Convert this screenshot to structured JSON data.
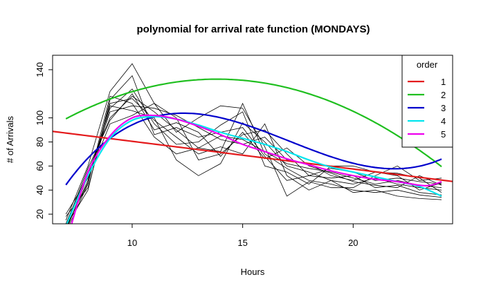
{
  "chart_data": {
    "type": "line",
    "title": "polynomial for arrival rate function (MONDAYS)",
    "xlabel": "Hours",
    "ylabel": "# of Arrivals",
    "xlim": [
      6.4,
      24.5
    ],
    "ylim": [
      12,
      152
    ],
    "xticks": [
      10,
      15,
      20
    ],
    "yticks": [
      20,
      40,
      60,
      80,
      100,
      140
    ],
    "legend": {
      "title": "order",
      "position": "top-right"
    },
    "raw_series": [
      [
        [
          7,
          5
        ],
        [
          8,
          45
        ],
        [
          9,
          118
        ],
        [
          10,
          112
        ],
        [
          11,
          84
        ],
        [
          12,
          70
        ],
        [
          13,
          75
        ],
        [
          14,
          72
        ],
        [
          15,
          112
        ],
        [
          16,
          70
        ],
        [
          17,
          58
        ],
        [
          18,
          48
        ],
        [
          19,
          45
        ],
        [
          20,
          40
        ],
        [
          21,
          38
        ],
        [
          22,
          40
        ],
        [
          23,
          36
        ],
        [
          24,
          34
        ]
      ],
      [
        [
          7,
          8
        ],
        [
          8,
          48
        ],
        [
          9,
          110
        ],
        [
          10,
          106
        ],
        [
          11,
          100
        ],
        [
          12,
          65
        ],
        [
          13,
          52
        ],
        [
          14,
          62
        ],
        [
          15,
          96
        ],
        [
          16,
          80
        ],
        [
          17,
          60
        ],
        [
          18,
          55
        ],
        [
          19,
          48
        ],
        [
          20,
          45
        ],
        [
          21,
          50
        ],
        [
          22,
          45
        ],
        [
          23,
          42
        ],
        [
          24,
          40
        ]
      ],
      [
        [
          7,
          10
        ],
        [
          8,
          40
        ],
        [
          9,
          115
        ],
        [
          10,
          135
        ],
        [
          11,
          86
        ],
        [
          12,
          92
        ],
        [
          13,
          84
        ],
        [
          14,
          88
        ],
        [
          15,
          92
        ],
        [
          16,
          68
        ],
        [
          17,
          48
        ],
        [
          18,
          52
        ],
        [
          19,
          50
        ],
        [
          20,
          52
        ],
        [
          21,
          42
        ],
        [
          22,
          44
        ],
        [
          23,
          38
        ],
        [
          24,
          36
        ]
      ],
      [
        [
          7,
          12
        ],
        [
          8,
          55
        ],
        [
          9,
          100
        ],
        [
          10,
          118
        ],
        [
          11,
          105
        ],
        [
          12,
          90
        ],
        [
          13,
          75
        ],
        [
          14,
          85
        ],
        [
          15,
          82
        ],
        [
          16,
          72
        ],
        [
          17,
          62
        ],
        [
          18,
          58
        ],
        [
          19,
          55
        ],
        [
          20,
          50
        ],
        [
          21,
          45
        ],
        [
          22,
          48
        ],
        [
          23,
          44
        ],
        [
          24,
          42
        ]
      ],
      [
        [
          7,
          15
        ],
        [
          8,
          60
        ],
        [
          9,
          122
        ],
        [
          10,
          145
        ],
        [
          11,
          112
        ],
        [
          12,
          100
        ],
        [
          13,
          65
        ],
        [
          14,
          70
        ],
        [
          15,
          86
        ],
        [
          16,
          90
        ],
        [
          17,
          70
        ],
        [
          18,
          52
        ],
        [
          19,
          58
        ],
        [
          20,
          55
        ],
        [
          21,
          48
        ],
        [
          22,
          50
        ],
        [
          23,
          47
        ],
        [
          24,
          45
        ]
      ],
      [
        [
          7,
          18
        ],
        [
          8,
          42
        ],
        [
          9,
          108
        ],
        [
          10,
          124
        ],
        [
          11,
          95
        ],
        [
          12,
          78
        ],
        [
          13,
          80
        ],
        [
          14,
          94
        ],
        [
          15,
          105
        ],
        [
          16,
          60
        ],
        [
          17,
          55
        ],
        [
          18,
          45
        ],
        [
          19,
          60
        ],
        [
          20,
          60
        ],
        [
          21,
          55
        ],
        [
          22,
          54
        ],
        [
          23,
          50
        ],
        [
          24,
          38
        ]
      ],
      [
        [
          7,
          20
        ],
        [
          8,
          50
        ],
        [
          9,
          95
        ],
        [
          10,
          102
        ],
        [
          11,
          112
        ],
        [
          12,
          88
        ],
        [
          13,
          100
        ],
        [
          14,
          110
        ],
        [
          15,
          108
        ],
        [
          16,
          76
        ],
        [
          17,
          35
        ],
        [
          18,
          47
        ],
        [
          19,
          42
        ],
        [
          20,
          42
        ],
        [
          21,
          52
        ],
        [
          22,
          60
        ],
        [
          23,
          48
        ],
        [
          24,
          50
        ]
      ],
      [
        [
          7,
          6
        ],
        [
          8,
          52
        ],
        [
          9,
          105
        ],
        [
          10,
          110
        ],
        [
          11,
          108
        ],
        [
          12,
          102
        ],
        [
          13,
          92
        ],
        [
          14,
          82
        ],
        [
          15,
          78
        ],
        [
          16,
          84
        ],
        [
          17,
          65
        ],
        [
          18,
          62
        ],
        [
          19,
          52
        ],
        [
          20,
          48
        ],
        [
          21,
          55
        ],
        [
          22,
          52
        ],
        [
          23,
          40
        ],
        [
          24,
          46
        ]
      ],
      [
        [
          7,
          9
        ],
        [
          8,
          46
        ],
        [
          9,
          112
        ],
        [
          10,
          116
        ],
        [
          11,
          98
        ],
        [
          12,
          84
        ],
        [
          13,
          70
        ],
        [
          14,
          76
        ],
        [
          15,
          70
        ],
        [
          16,
          95
        ],
        [
          17,
          52
        ],
        [
          18,
          40
        ],
        [
          19,
          48
        ],
        [
          20,
          38
        ],
        [
          21,
          40
        ],
        [
          22,
          35
        ],
        [
          23,
          33
        ],
        [
          24,
          32
        ]
      ],
      [
        [
          7,
          11
        ],
        [
          8,
          58
        ],
        [
          9,
          98
        ],
        [
          10,
          120
        ],
        [
          11,
          90
        ],
        [
          12,
          96
        ],
        [
          13,
          88
        ],
        [
          14,
          68
        ],
        [
          15,
          88
        ],
        [
          16,
          66
        ],
        [
          17,
          75
        ],
        [
          18,
          60
        ],
        [
          19,
          54
        ],
        [
          20,
          47
        ],
        [
          21,
          44
        ],
        [
          22,
          42
        ],
        [
          23,
          52
        ],
        [
          24,
          44
        ]
      ]
    ],
    "fitted_series": [
      {
        "name": "1",
        "color": "#e41a1c",
        "coef": [
          103.5,
          -2.3
        ]
      },
      {
        "name": "2",
        "color": "#1fbf1f",
        "coef": [
          -2.7467,
          19.4928,
          -0.70413
        ]
      },
      {
        "name": "3",
        "color": "#0000cc",
        "coef": [
          -328.38,
          86.34,
          -5.4757,
          0.10677
        ]
      },
      {
        "name": "4",
        "color": "#00e5ee",
        "points": [
          [
            7,
            10
          ],
          [
            8,
            52
          ],
          [
            9,
            83
          ],
          [
            10,
            98
          ],
          [
            11,
            101
          ],
          [
            12,
            99
          ],
          [
            13,
            94
          ],
          [
            14,
            88
          ],
          [
            15,
            83
          ],
          [
            16,
            78
          ],
          [
            17,
            72
          ],
          [
            18,
            65
          ],
          [
            19,
            59
          ],
          [
            20,
            55
          ],
          [
            21,
            51
          ],
          [
            22,
            47
          ],
          [
            23,
            43
          ],
          [
            24,
            35
          ]
        ]
      },
      {
        "name": "5",
        "color": "#ee00ee",
        "points": [
          [
            7.2,
            8
          ],
          [
            8,
            55
          ],
          [
            9,
            85
          ],
          [
            10,
            100
          ],
          [
            11,
            102
          ],
          [
            12,
            99
          ],
          [
            13,
            93
          ],
          [
            14,
            86
          ],
          [
            15,
            78
          ],
          [
            16,
            72
          ],
          [
            17,
            66
          ],
          [
            18,
            61
          ],
          [
            19,
            56
          ],
          [
            20,
            52
          ],
          [
            21,
            49
          ],
          [
            22,
            47
          ],
          [
            23,
            44
          ],
          [
            23.5,
            44
          ],
          [
            24,
            47
          ]
        ]
      }
    ]
  }
}
